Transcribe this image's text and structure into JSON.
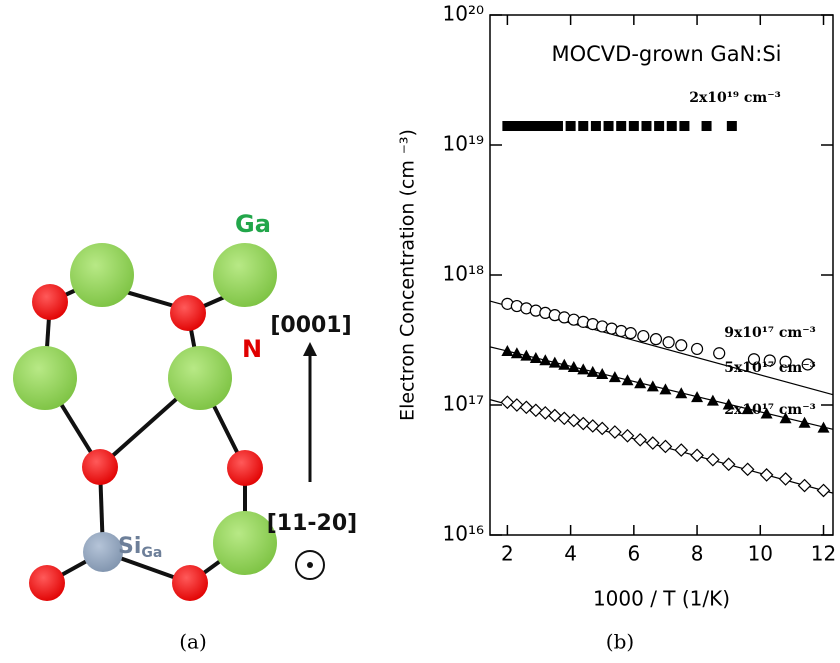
{
  "diagram": {
    "labels": {
      "ga": "Ga",
      "n": "N",
      "si": "Si",
      "si_sub": "Ga",
      "dir_up": "[0001]",
      "dir_out": "[11-20]"
    }
  },
  "captions": [
    "(a)",
    "(b)"
  ],
  "chart_data": {
    "type": "scatter",
    "title": "MOCVD-grown GaN:Si",
    "x_label": "1000 / T  (1/K)",
    "y_label": "Electron Concentration  (cm ⁻³)",
    "log_y": true,
    "xlim": [
      1.45,
      12.3
    ],
    "xticks": [
      2,
      4,
      6,
      8,
      10,
      12
    ],
    "ylim": [
      1e+16,
      1e+20
    ],
    "yticks": [
      {
        "value": 1e+16,
        "label": "10¹⁶"
      },
      {
        "value": 1e+17,
        "label": "10¹⁷"
      },
      {
        "value": 1e+18,
        "label": "10¹⁸"
      },
      {
        "value": 1e+19,
        "label": "10¹⁹"
      },
      {
        "value": 1e+20,
        "label": "10²⁰"
      }
    ],
    "series": [
      {
        "name": "2x10¹⁹ cm⁻³",
        "marker": "square",
        "color": "#000000",
        "x": [
          2.0,
          2.2,
          2.4,
          2.6,
          2.8,
          3.0,
          3.3,
          3.6,
          4.0,
          4.4,
          4.8,
          5.2,
          5.6,
          6.0,
          6.4,
          6.8,
          7.2,
          7.6,
          8.3,
          9.1
        ],
        "values": [
          1.4e+19,
          1.4e+19,
          1.4e+19,
          1.4e+19,
          1.4e+19,
          1.4e+19,
          1.4e+19,
          1.4e+19,
          1.4e+19,
          1.4e+19,
          1.4e+19,
          1.4e+19,
          1.4e+19,
          1.4e+19,
          1.4e+19,
          1.4e+19,
          1.4e+19,
          1.4e+19,
          1.4e+19,
          1.4e+19
        ]
      },
      {
        "name": "9x10¹⁷ cm⁻³",
        "marker": "circle",
        "color": "#000000",
        "x": [
          2.0,
          2.3,
          2.6,
          2.9,
          3.2,
          3.5,
          3.8,
          4.1,
          4.4,
          4.7,
          5.0,
          5.3,
          5.6,
          5.9,
          6.3,
          6.7,
          7.1,
          7.5,
          8.0,
          8.7,
          9.8,
          10.3,
          10.8,
          11.5
        ],
        "values": [
          6e+17,
          5.77e+17,
          5.54e+17,
          5.32e+17,
          5.11e+17,
          4.91e+17,
          4.72e+17,
          4.53e+17,
          4.36e+17,
          4.19e+17,
          4.02e+17,
          3.87e+17,
          3.71e+17,
          3.57e+17,
          3.39e+17,
          3.21e+17,
          3.04e+17,
          2.88e+17,
          2.7e+17,
          2.5e+17,
          2.25e+17,
          2.2e+17,
          2.15e+17,
          2.05e+17
        ],
        "fit": {
          "x": [
            1.45,
            12.3
          ],
          "values": [
            6.3e+17,
            1.2e+17
          ]
        }
      },
      {
        "name": "5x10¹⁷ cm⁻³",
        "marker": "triangle",
        "color": "#000000",
        "x": [
          2.0,
          2.3,
          2.6,
          2.9,
          3.2,
          3.5,
          3.8,
          4.1,
          4.4,
          4.7,
          5.0,
          5.4,
          5.8,
          6.2,
          6.6,
          7.0,
          7.5,
          8.0,
          8.5,
          9.0,
          9.6,
          10.2,
          10.8,
          11.4,
          12.0
        ],
        "values": [
          2.6e+17,
          2.5e+17,
          2.4e+17,
          2.3e+17,
          2.21e+17,
          2.12e+17,
          2.04e+17,
          1.96e+17,
          1.88e+17,
          1.8e+17,
          1.73e+17,
          1.64e+17,
          1.55e+17,
          1.47e+17,
          1.39e+17,
          1.32e+17,
          1.23e+17,
          1.15e+17,
          1.08e+17,
          1.01e+17,
          9.3e+16,
          8.6e+16,
          7.9e+16,
          7.3e+16,
          6.7e+16
        ],
        "fit": {
          "x": [
            1.45,
            12.3
          ],
          "values": [
            2.8e+17,
            6.5e+16
          ]
        }
      },
      {
        "name": "2x10¹⁷ cm⁻³",
        "marker": "diamond",
        "color": "#000000",
        "x": [
          2.0,
          2.3,
          2.6,
          2.9,
          3.2,
          3.5,
          3.8,
          4.1,
          4.4,
          4.7,
          5.0,
          5.4,
          5.8,
          6.2,
          6.6,
          7.0,
          7.5,
          8.0,
          8.5,
          9.0,
          9.6,
          10.2,
          10.8,
          11.4,
          12.0
        ],
        "values": [
          1.05e+17,
          1e+17,
          9.6e+16,
          9.1e+16,
          8.7e+16,
          8.3e+16,
          7.9e+16,
          7.6e+16,
          7.2e+16,
          6.9e+16,
          6.6e+16,
          6.2e+16,
          5.8e+16,
          5.4e+16,
          5.1e+16,
          4.8e+16,
          4.5e+16,
          4.1e+16,
          3.8e+16,
          3.5e+16,
          3.2e+16,
          2.9e+16,
          2.7e+16,
          2.4e+16,
          2.2e+16
        ],
        "fit": {
          "x": [
            1.45,
            12.3
          ],
          "values": [
            1.1e+17,
            2.1e+16
          ]
        }
      }
    ]
  }
}
